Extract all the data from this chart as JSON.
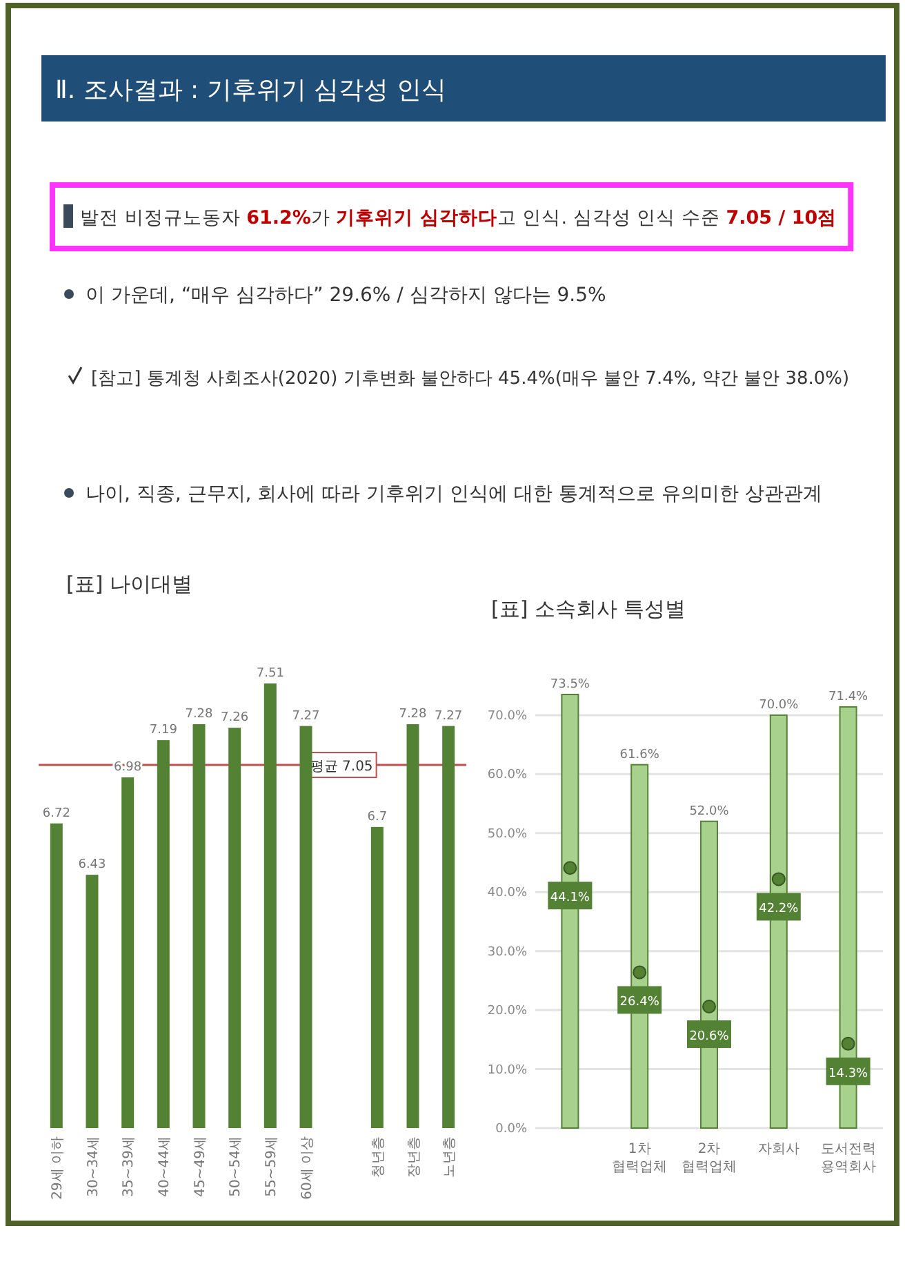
{
  "chart_data": [
    {
      "type": "other",
      "title": "Ⅱ. 조사결과 : 기후위기 심각성 인식",
      "annotations": [
        "발전 비정규노동자 **61.2%**가 **기후위기 심각하다**고 인식. 심각성 인식 수준 **7.05 / 10점**",
        "이 가운데, “매우 심각하다” 29.6% / 심각하지 않다는 9.5%",
        "[참고] 통계청 사회조사(2020) 기후변화 불안하다 45.4%(매우 불안 7.4%, 약간 불안 38.0%)",
        "나이, 직종, 근무지, 회사에 따라 기후위기 인식에 대한 통계적으로 유의미한 상관관계"
      ]
    },
    {
      "type": "bar",
      "title": "[표] 나이대별",
      "categories": [
        "29세 이하",
        "30~34세",
        "35~39세",
        "40~44세",
        "45~49세",
        "50~54세",
        "55~59세",
        "60세 이상",
        null,
        "청년층",
        "장년층",
        "노년층"
      ],
      "series": [
        {
          "color": "#548235",
          "values": [
            6.72,
            6.43,
            6.98,
            7.19,
            7.28,
            7.26,
            7.51,
            7.27,
            null,
            6.7,
            7.28,
            7.27
          ]
        }
      ],
      "ylim": [
        5,
        7.51
      ],
      "data_labels": true,
      "tick_labels": "x",
      "ref_lines": [
        {
          "axis": "y",
          "value": 7.05,
          "label": "평균 7.05",
          "color": "#c0504d"
        }
      ]
    },
    {
      "type": "bar",
      "title": "[표] 소속회사 특성별",
      "categories": [
        null,
        "1차 협력업체",
        "2차 협력업체",
        "자회사",
        "도서전력 용역회사"
      ],
      "series": [
        {
          "color": "#a9d18e",
          "values": [
            73.5,
            61.6,
            52.0,
            70.0,
            71.4
          ],
          "value_labels": [
            "73.5%",
            "61.6%",
            "52.0%",
            "70.0%",
            "71.4%"
          ]
        },
        {
          "type": "scatter",
          "marker": "circle",
          "color": "#548235",
          "values": [
            44.1,
            26.4,
            20.6,
            42.2,
            14.3
          ],
          "value_labels": [
            "44.1%",
            "26.4%",
            "20.6%",
            "42.2%",
            "14.3%"
          ]
        }
      ],
      "ylim": [
        0,
        73.5
      ],
      "yticks": [
        {
          "value": 0,
          "label": "0.0%"
        },
        {
          "value": 10,
          "label": "10.0%"
        },
        {
          "value": 20,
          "label": "20.0%"
        },
        {
          "value": 30,
          "label": "30.0%"
        },
        {
          "value": 40,
          "label": "40.0%"
        },
        {
          "value": 50,
          "label": "50.0%"
        },
        {
          "value": 60,
          "label": "60.0%"
        },
        {
          "value": 70,
          "label": "70.0%"
        }
      ],
      "grid": "y"
    }
  ]
}
